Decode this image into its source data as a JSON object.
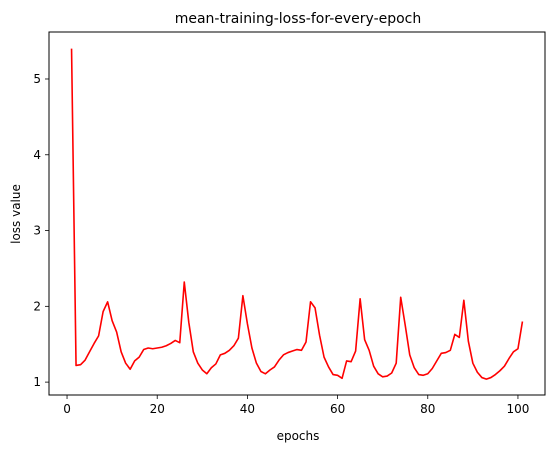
{
  "chart_data": {
    "type": "line",
    "title": "mean-training-loss-for-every-epoch",
    "xlabel": "epochs",
    "ylabel": "loss value",
    "xlim": [
      -4.0,
      106.0
    ],
    "ylim": [
      0.83,
      5.62
    ],
    "xticks": [
      0,
      20,
      40,
      60,
      80,
      100
    ],
    "yticks": [
      1,
      2,
      3,
      4,
      5
    ],
    "grid": false,
    "series": [
      {
        "color": "#ff0000",
        "x": [
          1,
          2,
          3,
          4,
          5,
          6,
          7,
          8,
          9,
          10,
          11,
          12,
          13,
          14,
          15,
          16,
          17,
          18,
          19,
          20,
          21,
          22,
          23,
          24,
          25,
          26,
          27,
          28,
          29,
          30,
          31,
          32,
          33,
          34,
          35,
          36,
          37,
          38,
          39,
          40,
          41,
          42,
          43,
          44,
          45,
          46,
          47,
          48,
          49,
          50,
          51,
          52,
          53,
          54,
          55,
          56,
          57,
          58,
          59,
          60,
          61,
          62,
          63,
          64,
          65,
          66,
          67,
          68,
          69,
          70,
          71,
          72,
          73,
          74,
          75,
          76,
          77,
          78,
          79,
          80,
          81,
          82,
          83,
          84,
          85,
          86,
          87,
          88,
          89,
          90,
          91,
          92,
          93,
          94,
          95,
          96,
          97,
          98,
          99,
          100,
          101
        ],
        "y": [
          5.4,
          1.22,
          1.23,
          1.29,
          1.4,
          1.51,
          1.61,
          1.93,
          2.06,
          1.81,
          1.66,
          1.4,
          1.25,
          1.17,
          1.28,
          1.33,
          1.43,
          1.45,
          1.44,
          1.45,
          1.46,
          1.48,
          1.51,
          1.55,
          1.52,
          2.32,
          1.79,
          1.4,
          1.25,
          1.16,
          1.11,
          1.19,
          1.24,
          1.36,
          1.38,
          1.42,
          1.48,
          1.58,
          2.14,
          1.77,
          1.45,
          1.25,
          1.14,
          1.11,
          1.16,
          1.2,
          1.29,
          1.36,
          1.39,
          1.41,
          1.43,
          1.42,
          1.53,
          2.06,
          1.98,
          1.62,
          1.33,
          1.2,
          1.1,
          1.09,
          1.05,
          1.28,
          1.27,
          1.41,
          2.1,
          1.56,
          1.42,
          1.21,
          1.11,
          1.07,
          1.08,
          1.12,
          1.25,
          2.12,
          1.75,
          1.36,
          1.19,
          1.1,
          1.09,
          1.11,
          1.18,
          1.28,
          1.38,
          1.39,
          1.42,
          1.63,
          1.59,
          2.08,
          1.54,
          1.25,
          1.13,
          1.06,
          1.04,
          1.06,
          1.1,
          1.15,
          1.21,
          1.31,
          1.4,
          1.44,
          1.8
        ]
      }
    ]
  }
}
